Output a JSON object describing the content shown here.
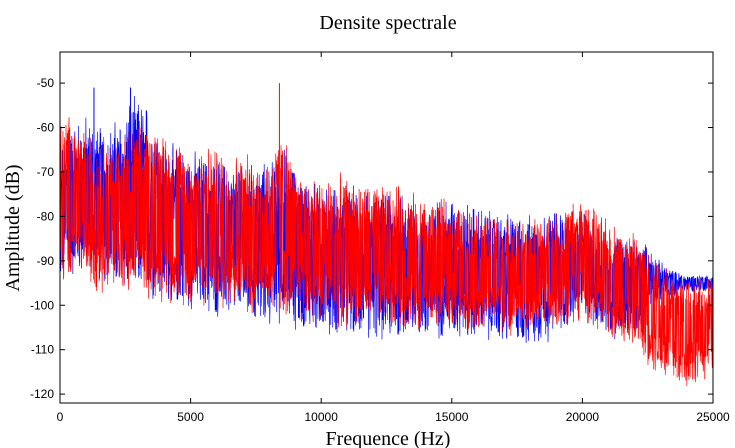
{
  "chart_data": {
    "type": "line",
    "title": "Densite spectrale",
    "xlabel": "Frequence (Hz)",
    "ylabel": "Amplitude (dB)",
    "xlim": [
      0,
      25000
    ],
    "ylim": [
      -122,
      -43
    ],
    "xticks": [
      0,
      5000,
      10000,
      15000,
      20000,
      25000
    ],
    "yticks": [
      -50,
      -60,
      -70,
      -80,
      -90,
      -100,
      -110,
      -120
    ],
    "grid": false,
    "legend": "none",
    "series": [
      {
        "color": "#0000ff",
        "envelope": {
          "x": [
            0,
            500,
            1000,
            1500,
            2000,
            2500,
            3000,
            3500,
            4000,
            5000,
            6000,
            7000,
            8000,
            8500,
            9000,
            10000,
            11000,
            12000,
            13000,
            14000,
            15000,
            16000,
            17000,
            18000,
            19000,
            19500,
            20000,
            20500,
            21000,
            22000,
            22500,
            23000,
            23500,
            24000,
            24500,
            25000
          ],
          "upper": [
            -63,
            -57,
            -56,
            -58,
            -58,
            -53,
            -52,
            -53,
            -62,
            -64,
            -66,
            -67,
            -67,
            -62,
            -68,
            -72,
            -72,
            -74,
            -74,
            -76,
            -74,
            -77,
            -78,
            -79,
            -77,
            -78,
            -79,
            -80,
            -83,
            -84,
            -86,
            -90,
            -92,
            -93,
            -93,
            -93
          ],
          "lower": [
            -96,
            -95,
            -94,
            -96,
            -97,
            -99,
            -100,
            -100,
            -101,
            -102,
            -104,
            -105,
            -106,
            -105,
            -107,
            -108,
            -108,
            -109,
            -109,
            -109,
            -108,
            -109,
            -110,
            -110,
            -109,
            -105,
            -103,
            -106,
            -108,
            -110,
            -101,
            -99,
            -98,
            -97,
            -97,
            -97
          ]
        }
      },
      {
        "color": "#ff0000",
        "envelope": {
          "x": [
            0,
            500,
            1000,
            1500,
            2000,
            2500,
            3000,
            3500,
            4000,
            5000,
            6000,
            7000,
            8000,
            8500,
            9000,
            10000,
            11000,
            12000,
            13000,
            14000,
            15000,
            16000,
            17000,
            18000,
            19000,
            19500,
            20000,
            20500,
            21000,
            22000,
            22500,
            23000,
            23500,
            24000,
            24500,
            25000
          ],
          "upper": [
            -57,
            -55,
            -60,
            -58,
            -62,
            -60,
            -58,
            -57,
            -60,
            -63,
            -63,
            -65,
            -65,
            -59,
            -68,
            -70,
            -70,
            -72,
            -72,
            -75,
            -76,
            -78,
            -80,
            -80,
            -78,
            -76,
            -74,
            -78,
            -80,
            -83,
            -86,
            -88,
            -90,
            -92,
            -93,
            -93
          ],
          "lower": [
            -98,
            -95,
            -96,
            -98,
            -98,
            -99,
            -100,
            -100,
            -100,
            -101,
            -102,
            -103,
            -104,
            -104,
            -105,
            -105,
            -106,
            -106,
            -106,
            -106,
            -106,
            -107,
            -107,
            -107,
            -106,
            -105,
            -104,
            -106,
            -108,
            -110,
            -114,
            -118,
            -120,
            -120,
            -118,
            -116
          ]
        }
      }
    ],
    "peaks": [
      {
        "x": 8400,
        "y": -50,
        "series": 1
      },
      {
        "x": 1300,
        "y": -51,
        "series": 0
      },
      {
        "x": 2700,
        "y": -51,
        "series": 0
      }
    ]
  }
}
